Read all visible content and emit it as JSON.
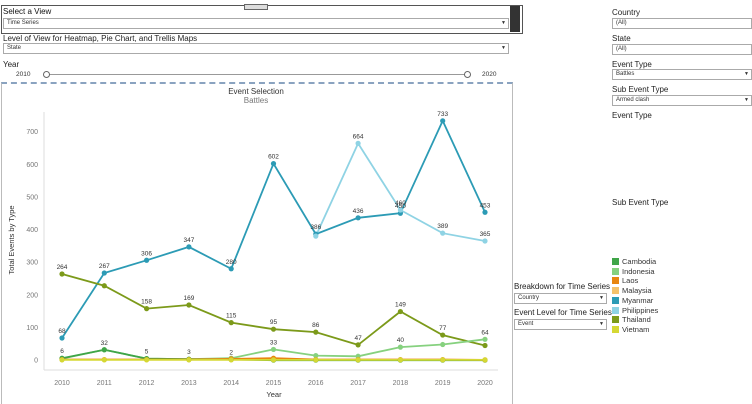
{
  "view_selector": {
    "label": "Select a View",
    "value": "Time Series"
  },
  "level_of_view": {
    "label": "Level of View for Heatmap, Pie Chart, and Trellis Maps",
    "value": "State"
  },
  "year_slider": {
    "label": "Year",
    "min_label": "2010",
    "max_label": "2020"
  },
  "chart_header": {
    "title": "Event Selection",
    "subtitle": "Battles"
  },
  "filters": {
    "country_label": "Country",
    "country_value": "(All)",
    "state_label": "State",
    "state_value": "(All)",
    "event_type_label": "Event Type",
    "event_type_value": "Battles",
    "sub_event_type_label": "Sub Event Type",
    "sub_event_type_value": "Armed clash",
    "event_type_label_2": "Event Type",
    "sub_event_type_label_2": "Sub Event Type"
  },
  "breakdown": {
    "label": "Breakdown for Time Series",
    "value": "Country",
    "event_level_label": "Event Level for Time Series",
    "event_level_value": "Event"
  },
  "colors": {
    "Cambodia": "#3fa548",
    "Indonesia": "#86d17f",
    "Laos": "#e8860f",
    "Malaysia": "#f5c26b",
    "Myanmar": "#2c9bb5",
    "Philippines": "#8fd3e4",
    "Thailand": "#7c9a1a",
    "Vietnam": "#d5d834"
  },
  "chart_data": {
    "type": "line",
    "title": "Event Selection",
    "subtitle": "Battles",
    "xlabel": "Year",
    "ylabel": "Total Events by Type",
    "ylim": [
      -30,
      760
    ],
    "y_ticks": [
      0,
      100,
      200,
      300,
      400,
      500,
      600,
      700
    ],
    "x": [
      2010,
      2011,
      2012,
      2013,
      2014,
      2015,
      2016,
      2017,
      2018,
      2019,
      2020
    ],
    "series": [
      {
        "name": "Myanmar",
        "values": [
          68,
          267,
          306,
          347,
          280,
          602,
          386,
          436,
          450,
          733,
          453
        ],
        "labels": [
          "68",
          "267",
          "306",
          "347",
          "280",
          "602",
          "386",
          "436",
          "450",
          "733",
          "453"
        ]
      },
      {
        "name": "Philippines",
        "values": [
          null,
          null,
          null,
          null,
          null,
          null,
          380,
          664,
          460,
          389,
          365
        ],
        "labels": [
          null,
          null,
          null,
          null,
          null,
          null,
          null,
          "664",
          "460",
          "389",
          "365"
        ]
      },
      {
        "name": "Thailand",
        "values": [
          264,
          228,
          158,
          169,
          115,
          95,
          86,
          47,
          149,
          77,
          45
        ],
        "labels": [
          "264",
          null,
          "158",
          "169",
          "115",
          "95",
          "86",
          "47",
          "149",
          "77",
          null
        ]
      },
      {
        "name": "Indonesia",
        "values": [
          5,
          32,
          5,
          3,
          6,
          33,
          14,
          12,
          40,
          48,
          64
        ],
        "labels": [
          null,
          null,
          null,
          null,
          null,
          "33",
          null,
          null,
          "40",
          null,
          "64"
        ]
      },
      {
        "name": "Cambodia",
        "values": [
          6,
          32,
          5,
          3,
          2,
          0,
          0,
          0,
          0,
          0,
          0
        ],
        "labels": [
          "6",
          "32",
          "5",
          "3",
          "2",
          null,
          null,
          null,
          null,
          null,
          null
        ]
      },
      {
        "name": "Laos",
        "values": [
          2,
          2,
          2,
          2,
          4,
          6,
          2,
          2,
          2,
          2,
          1
        ],
        "labels": [
          null,
          null,
          null,
          null,
          null,
          null,
          null,
          null,
          null,
          null,
          null
        ]
      },
      {
        "name": "Vietnam",
        "values": [
          1,
          1,
          1,
          1,
          1,
          1,
          1,
          1,
          1,
          1,
          1
        ],
        "labels": [
          null,
          null,
          null,
          null,
          null,
          null,
          null,
          null,
          null,
          null,
          null
        ]
      }
    ],
    "legend": [
      "Cambodia",
      "Indonesia",
      "Laos",
      "Malaysia",
      "Myanmar",
      "Philippines",
      "Thailand",
      "Vietnam"
    ]
  }
}
